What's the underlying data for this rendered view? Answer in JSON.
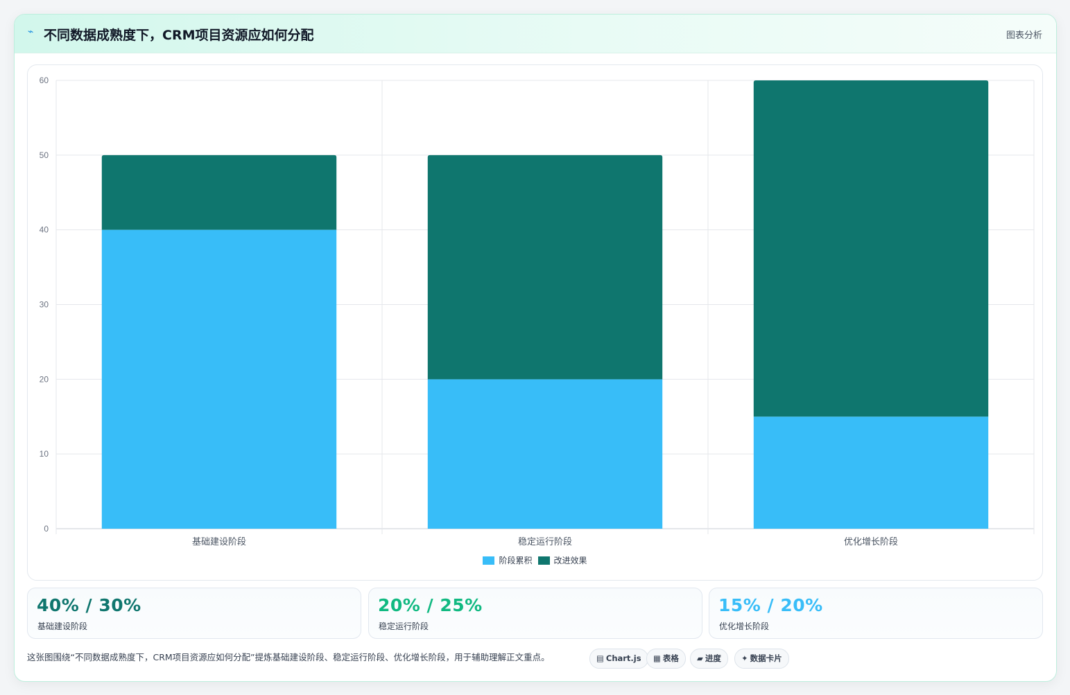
{
  "header": {
    "icon": "bolt-icon",
    "title": "不同数据成熟度下，CRM项目资源应如何分配",
    "tag": "图表分析"
  },
  "chart_data": {
    "type": "bar",
    "stacked": true,
    "categories": [
      "基础建设阶段",
      "稳定运行阶段",
      "优化增长阶段"
    ],
    "series": [
      {
        "name": "阶段累积",
        "values": [
          40,
          20,
          15
        ],
        "color": "#38bdf8"
      },
      {
        "name": "改进效果",
        "values": [
          10,
          30,
          45
        ],
        "color": "#0f766e"
      }
    ],
    "ylim": [
      0,
      60
    ],
    "yticks": [
      0,
      10,
      20,
      30,
      40,
      50,
      60
    ],
    "grid": true,
    "legend": "bottom"
  },
  "stats": [
    {
      "value": "40% / 30%",
      "label": "基础建设阶段",
      "color": "#0f766e"
    },
    {
      "value": "20% / 25%",
      "label": "稳定运行阶段",
      "color": "#10b981"
    },
    {
      "value": "15% / 20%",
      "label": "优化增长阶段",
      "color": "#38bdf8"
    }
  ],
  "footer": {
    "note": "这张图围绕“不同数据成熟度下，CRM项目资源应如何分配”提炼基础建设阶段、稳定运行阶段、优化增长阶段，用于辅助理解正文重点。",
    "pills": [
      {
        "icon": "▤",
        "icon_name": "chart-icon",
        "label": "Chart.js"
      },
      {
        "icon": "▦",
        "icon_name": "table-icon",
        "label": "表格"
      },
      {
        "icon": "▰",
        "icon_name": "progress-icon",
        "label": "进度"
      },
      {
        "icon": "✦",
        "icon_name": "sparkle-icon",
        "label": "数据卡片"
      }
    ]
  }
}
